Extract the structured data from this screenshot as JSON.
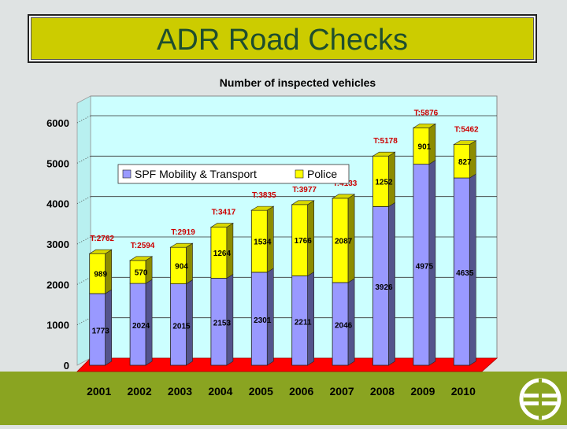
{
  "page": {
    "title": "ADR Road Checks",
    "colors": {
      "title_bg": "#cccc00",
      "title_text": "#1f4e2e",
      "band": "#8aa421"
    }
  },
  "logo": {
    "icon": "euro-road-logo-icon"
  },
  "chart_data": {
    "type": "bar",
    "stacked": true,
    "title": "Number of inspected vehicles",
    "categories": [
      "2001",
      "2002",
      "2003",
      "2004",
      "2005",
      "2006",
      "2007",
      "2008",
      "2009",
      "2010"
    ],
    "series": [
      {
        "name": "SPF Mobility & Transport",
        "color": "#9999ff",
        "values": [
          1773,
          2024,
          2015,
          2153,
          2301,
          2211,
          2046,
          3926,
          4975,
          4635
        ],
        "labels": [
          "1773",
          "2024",
          "2015",
          "2153",
          "2301",
          "2211",
          "2046",
          "3926",
          "4975",
          "4635"
        ]
      },
      {
        "name": "Police",
        "color": "#ffff00",
        "values": [
          989,
          570,
          904,
          1264,
          1534,
          1766,
          2087,
          1252,
          901,
          827
        ],
        "labels": [
          "989",
          "570",
          "904",
          "1264",
          "1534",
          "1766",
          "2087",
          "1252",
          "901",
          "827"
        ]
      }
    ],
    "totals": [
      "T:2762",
      "T:2594",
      "T:2919",
      "T:3417",
      "T:3835",
      "T:3977",
      "T:4133",
      "T:5178",
      "T:5876",
      "T:5462"
    ],
    "yticks": [
      "0",
      "1000",
      "2000",
      "3000",
      "4000",
      "5000",
      "6000"
    ],
    "ylim": [
      0,
      6000
    ],
    "grid": true,
    "legend": "upper-left",
    "colors": {
      "plot_bg": "#ccffff",
      "floor": "#ff0000",
      "total_label": "#cc0000"
    }
  }
}
